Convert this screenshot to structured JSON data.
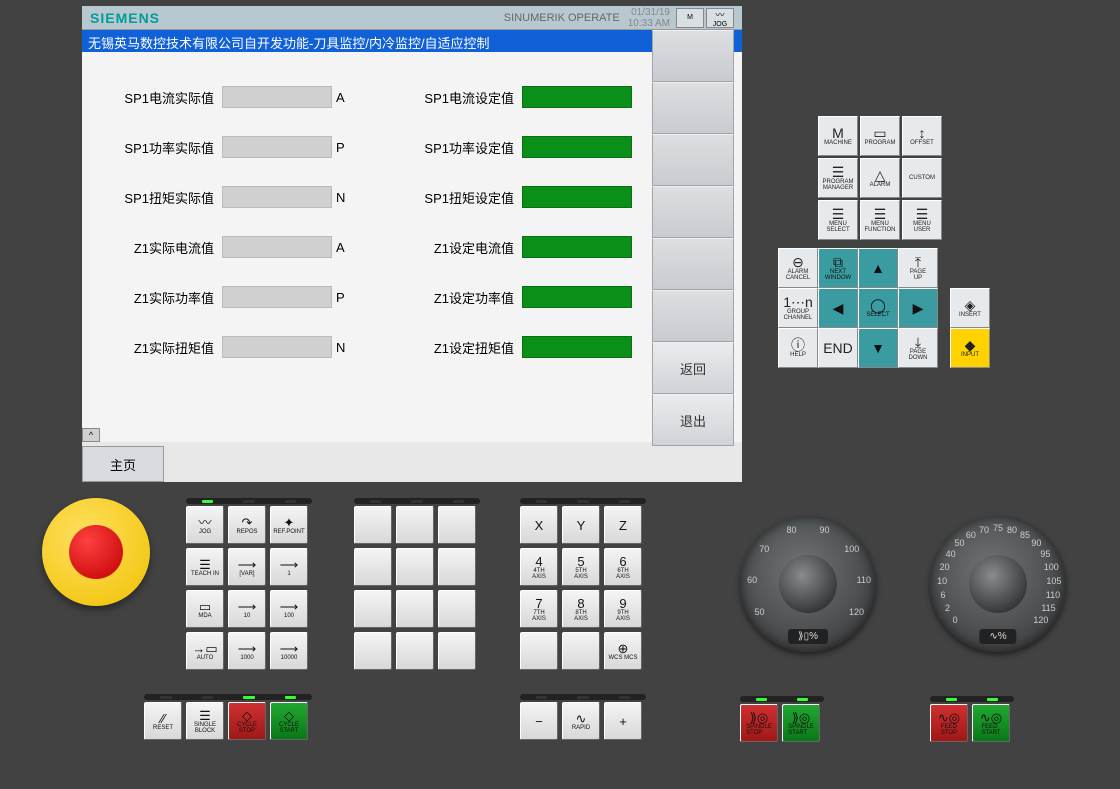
{
  "header": {
    "brand": "SIEMENS",
    "product": "SINUMERIK OPERATE",
    "date": "01/31/19",
    "time": "10:33 AM",
    "mode_icon": "M",
    "jog_icon": "JOG"
  },
  "title_bar": "无锡英马数控技术有限公司自开发功能-刀具监控/内冷监控/自适应控制",
  "rows": [
    {
      "actual_label": "SP1电流实际值",
      "unit": "A",
      "set_label": "SP1电流设定值"
    },
    {
      "actual_label": "SP1功率实际值",
      "unit": "P",
      "set_label": "SP1功率设定值"
    },
    {
      "actual_label": "SP1扭矩实际值",
      "unit": "N",
      "set_label": "SP1扭矩设定值"
    },
    {
      "actual_label": "Z1实际电流值",
      "unit": "A",
      "set_label": "Z1设定电流值"
    },
    {
      "actual_label": "Z1实际功率值",
      "unit": "P",
      "set_label": "Z1设定功率值"
    },
    {
      "actual_label": "Z1实际扭矩值",
      "unit": "N",
      "set_label": "Z1设定扭矩值"
    }
  ],
  "softkeys_right": [
    "",
    "",
    "",
    "",
    "",
    "",
    "返回",
    "退出"
  ],
  "bottom_tab": "主页",
  "grid_a": [
    {
      "icon": "M",
      "label": "MACHINE"
    },
    {
      "icon": "▭",
      "label": "PROGRAM"
    },
    {
      "icon": "↕",
      "label": "OFFSET"
    },
    {
      "icon": "☰",
      "label": "PROGRAM\nMANAGER"
    },
    {
      "icon": "△",
      "label": "ALARM"
    },
    {
      "icon": "",
      "label": "CUSTOM"
    },
    {
      "icon": "☰",
      "label": "MENU\nSELECT"
    },
    {
      "icon": "☰",
      "label": "MENU\nFUNCTION"
    },
    {
      "icon": "☰",
      "label": "MENU\nUSER"
    }
  ],
  "grid_b": [
    {
      "icon": "⊖",
      "label": "ALARM\nCANCEL",
      "cls": ""
    },
    {
      "icon": "⧉",
      "label": "NEXT\nWINDOW",
      "cls": "teal"
    },
    {
      "icon": "▲",
      "label": "",
      "cls": "teal"
    },
    {
      "icon": "⤒",
      "label": "PAGE\nUP",
      "cls": ""
    },
    {
      "icon": "1⋯n",
      "label": "GROUP\nCHANNEL",
      "cls": ""
    },
    {
      "icon": "◀",
      "label": "",
      "cls": "teal"
    },
    {
      "icon": "◯",
      "label": "SELECT",
      "cls": "teal"
    },
    {
      "icon": "▶",
      "label": "",
      "cls": "teal"
    },
    {
      "icon": "ⓘ",
      "label": "HELP",
      "cls": ""
    },
    {
      "icon": "END",
      "label": "",
      "cls": ""
    },
    {
      "icon": "▼",
      "label": "",
      "cls": "teal"
    },
    {
      "icon": "⤓",
      "label": "PAGE\nDOWN",
      "cls": ""
    }
  ],
  "grid_c": [
    {
      "icon": "◈",
      "label": "INSERT",
      "cls": ""
    },
    {
      "icon": "◆",
      "label": "INPUT",
      "cls": "yellow"
    }
  ],
  "kp1": [
    {
      "icon": "〰",
      "label": "JOG"
    },
    {
      "icon": "↷",
      "label": "REPOS"
    },
    {
      "icon": "✦",
      "label": "REF.POINT"
    },
    {
      "icon": "☰",
      "label": "TEACH IN"
    },
    {
      "icon": "⟶",
      "label": "[VAR]"
    },
    {
      "icon": "⟶",
      "label": "1"
    },
    {
      "icon": "▭",
      "label": "MDA"
    },
    {
      "icon": "⟶",
      "label": "10"
    },
    {
      "icon": "⟶",
      "label": "100"
    },
    {
      "icon": "→▭",
      "label": "AUTO"
    },
    {
      "icon": "⟶",
      "label": "1000"
    },
    {
      "icon": "⟶",
      "label": "10000"
    }
  ],
  "kp1b": [
    {
      "icon": "☰",
      "label": "SINGLE\nBLOCK",
      "cls": ""
    },
    {
      "icon": "◇",
      "label": "CYCLE\nSTOP",
      "cls": "red"
    },
    {
      "icon": "◇",
      "label": "CYCLE\nSTART",
      "cls": "grn"
    }
  ],
  "reset_btn": {
    "icon": "⁄⁄",
    "label": "RESET"
  },
  "kp3": [
    {
      "icon": "X",
      "label": ""
    },
    {
      "icon": "Y",
      "label": ""
    },
    {
      "icon": "Z",
      "label": ""
    },
    {
      "icon": "4",
      "label": "4TH\nAXIS"
    },
    {
      "icon": "5",
      "label": "5TH\nAXIS"
    },
    {
      "icon": "6",
      "label": "6TH\nAXIS"
    },
    {
      "icon": "7",
      "label": "7TH\nAXIS"
    },
    {
      "icon": "8",
      "label": "8TH\nAXIS"
    },
    {
      "icon": "9",
      "label": "9TH\nAXIS"
    },
    {
      "icon": "",
      "label": ""
    },
    {
      "icon": "",
      "label": ""
    },
    {
      "icon": "⊕",
      "label": "WCS MCS"
    }
  ],
  "kp3b": [
    {
      "icon": "−",
      "label": ""
    },
    {
      "icon": "∿",
      "label": "RAPID"
    },
    {
      "icon": "+",
      "label": ""
    }
  ],
  "dial1": {
    "badge": "⟫▯%",
    "ticks": [
      "50",
      "60",
      "70",
      "80",
      "90",
      "100",
      "110",
      "120"
    ]
  },
  "dial2": {
    "badge": "∿%",
    "ticks": [
      "0",
      "2",
      "6",
      "10",
      "20",
      "40",
      "50",
      "60",
      "70",
      "75",
      "80",
      "85",
      "90",
      "95",
      "100",
      "105",
      "110",
      "115",
      "120"
    ]
  },
  "spindle": {
    "stop": {
      "icon": "⟫◎",
      "label": "SPINDLE\nSTOP"
    },
    "start": {
      "icon": "⟫◎",
      "label": "SPINDLE\nSTART"
    }
  },
  "feed": {
    "stop": {
      "icon": "∿◎",
      "label": "FEED\nSTOP"
    },
    "start": {
      "icon": "∿◎",
      "label": "FEED\nSTART"
    }
  },
  "colors": {
    "brand": "#009b9b",
    "title_bg": "#1060d8",
    "green": "#0a9018",
    "red": "#c01818",
    "panel": "#424242"
  }
}
